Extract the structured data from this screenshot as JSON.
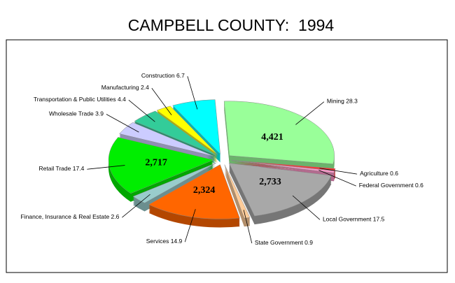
{
  "chart_data": {
    "type": "pie3d",
    "title": "CAMPBELL COUNTY:  1994",
    "categories": [
      "Mining",
      "Agriculture",
      "Federal Government",
      "Local Government",
      "State Government",
      "Services",
      "Finance, Insurance & Real Estate",
      "Retail Trade",
      "Wholesale Trade",
      "Transportation & Public Utilities",
      "Manufacturing",
      "Construction"
    ],
    "values": [
      28.3,
      0.6,
      0.6,
      17.5,
      0.9,
      14.9,
      2.6,
      17.4,
      3.9,
      4.4,
      2.4,
      6.7
    ],
    "colors": [
      "#99ff99",
      "#ff3333",
      "#ff99cc",
      "#a8a8a8",
      "#ffcc99",
      "#ff6600",
      "#99cccc",
      "#00ee00",
      "#ccccff",
      "#33cc99",
      "#ffff00",
      "#00ffff"
    ],
    "counts": [
      4421,
      null,
      null,
      2733,
      null,
      2324,
      null,
      2717,
      null,
      null,
      null,
      null
    ],
    "count_labels": [
      "4,421",
      null,
      null,
      "2,733",
      null,
      "2,324",
      null,
      "2,717",
      null,
      null,
      null,
      null
    ]
  }
}
